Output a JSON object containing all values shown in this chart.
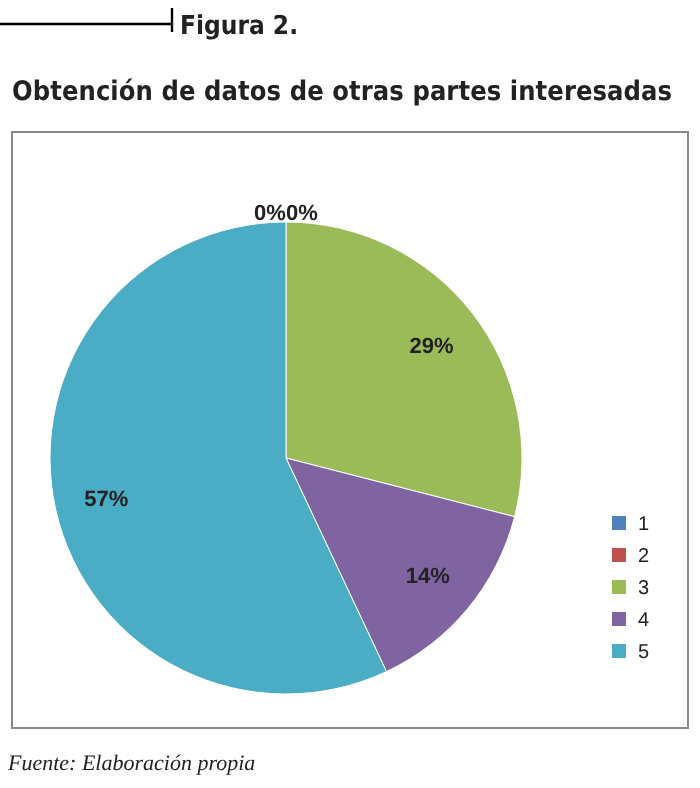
{
  "chart_data": {
    "type": "pie",
    "title": "Figura 2.",
    "subtitle": "Obtención de datos de otras partes interesadas",
    "categories": [
      "1",
      "2",
      "3",
      "4",
      "5"
    ],
    "values": [
      0,
      0,
      29,
      14,
      57
    ],
    "colors": [
      "#4f81bd",
      "#c0504d",
      "#9bbb59",
      "#8064a2",
      "#4bacc6"
    ],
    "value_labels": [
      "0%",
      "0%",
      "29%",
      "14%",
      "57%"
    ],
    "legend": "right",
    "annotations": [
      "Fuente: Elaboración propia"
    ]
  }
}
